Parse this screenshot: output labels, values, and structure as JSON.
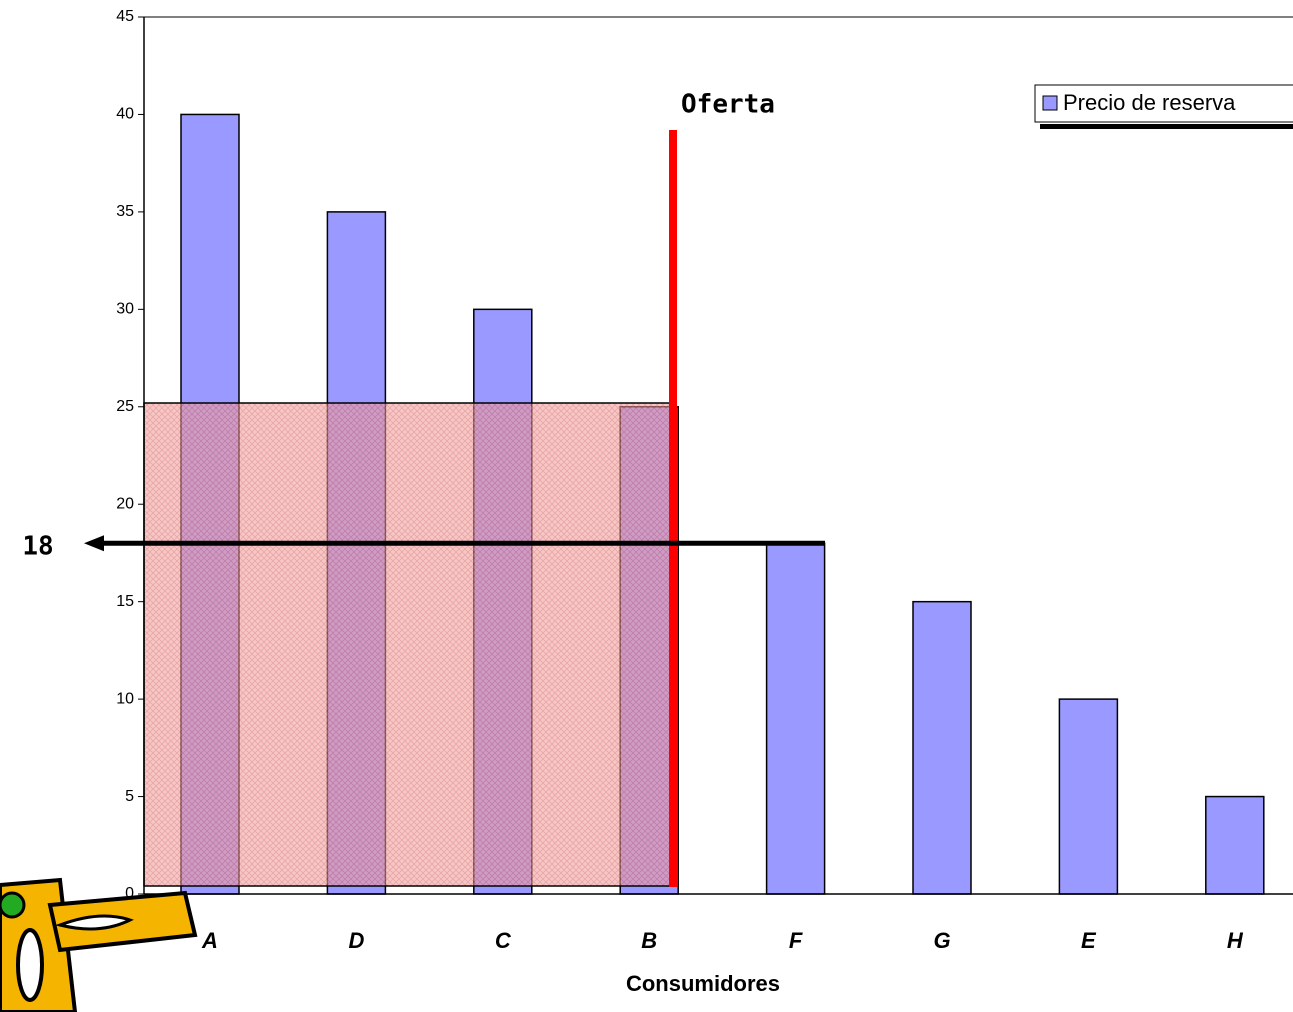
{
  "chart_data": {
    "type": "bar",
    "categories": [
      "A",
      "D",
      "C",
      "B",
      "F",
      "G",
      "E",
      "H"
    ],
    "series": [
      {
        "name": "Precio de reserva",
        "color": "#9999ff",
        "values": [
          40,
          35,
          30,
          25,
          18,
          15,
          10,
          5
        ]
      }
    ],
    "ylim": [
      0,
      45
    ],
    "yticks": [
      0,
      5,
      10,
      15,
      20,
      25,
      30,
      35,
      40,
      45
    ],
    "x_label": "Consumidores",
    "supply_label": "Oferta",
    "price_level": 18,
    "legend": "top-right"
  }
}
